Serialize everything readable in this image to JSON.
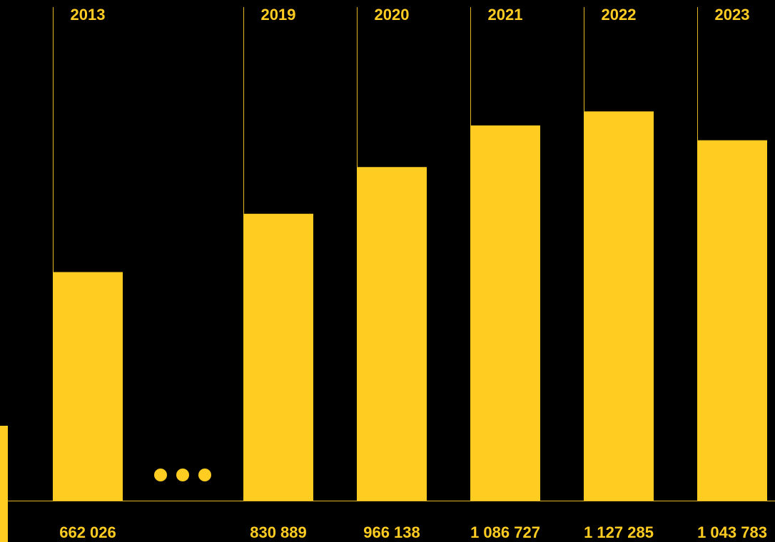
{
  "colors": {
    "background": "#000000",
    "bar": "#FFCC22",
    "line": "#E2B720"
  },
  "chart_data": {
    "type": "bar",
    "categories": [
      "2013",
      "2019",
      "2020",
      "2021",
      "2022",
      "2023"
    ],
    "values": [
      662026,
      830889,
      966138,
      1086727,
      1127285,
      1043783
    ],
    "value_labels": [
      "662 026",
      "830 889",
      "966 138",
      "1 086 727",
      "1 127 285",
      "1 043 783"
    ],
    "ylim": [
      0,
      1450000
    ],
    "gap_marker": "ellipsis dots between 2013 and 2019",
    "title": "",
    "xlabel": "",
    "ylabel": "",
    "grid": false,
    "legend": "none"
  }
}
